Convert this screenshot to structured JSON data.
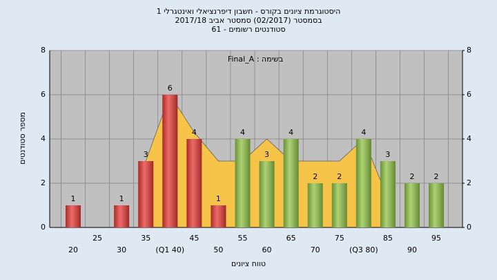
{
  "chart_data": {
    "type": "bar",
    "title": "היסטוגרמת ציונים בקורס - חשבון דיפרנציאלי ואינטגרלי 1",
    "subtitle": "בסמסטר  (02/2017)  סמסטר אביב 2017/18",
    "subtitle2": "סטודנטים רשומים - 61",
    "annotation": "בשימה : Final_A",
    "x_label": "טווח ציונים",
    "y_label": "מספר סטודנטים",
    "categories": [
      "20",
      "25",
      "30",
      "35",
      "(Q1 40)",
      "45",
      "50",
      "55",
      "60",
      "65",
      "70",
      "75",
      "(Q3 80)",
      "85",
      "90",
      "95"
    ],
    "values": [
      1,
      0,
      1,
      3,
      6,
      4,
      1,
      4,
      3,
      4,
      2,
      2,
      4,
      3,
      2,
      2
    ],
    "colors": [
      "#e53935",
      "#e53935",
      "#e53935",
      "#e53935",
      "#e53935",
      "#e53935",
      "#e53935",
      "#8fc246",
      "#8fc246",
      "#8fc246",
      "#8fc246",
      "#8fc246",
      "#8fc246",
      "#8fc246",
      "#8fc246",
      "#8fc246"
    ],
    "area": {
      "color": "#f7c44a",
      "values": [
        null,
        null,
        null,
        3,
        6,
        4.3,
        3,
        3,
        4,
        3,
        3,
        3,
        4,
        1.3,
        null,
        null
      ]
    },
    "ylim": [
      0,
      8
    ],
    "yticks": [
      0,
      2,
      4,
      6,
      8
    ],
    "y2ticks": [
      0,
      2,
      4,
      6,
      8
    ],
    "grid": true
  }
}
